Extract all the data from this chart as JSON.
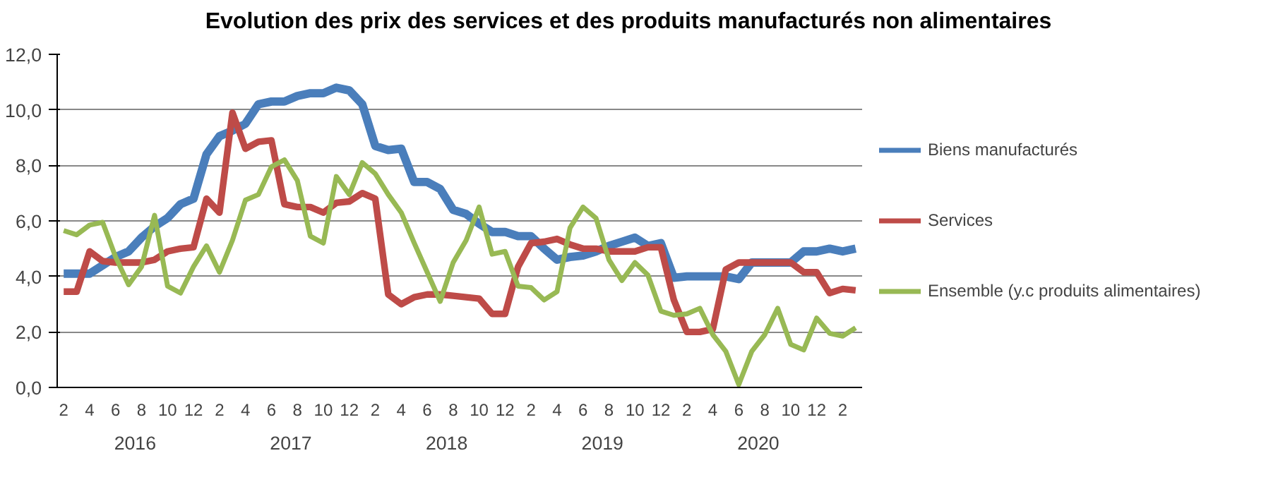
{
  "chart_data": {
    "type": "line",
    "title": "Evolution des prix des services et des produits manufacturés non alimentaires",
    "categories": [
      "2",
      null,
      "4",
      null,
      "6",
      null,
      "8",
      null,
      "10",
      null,
      "12",
      null,
      "2",
      null,
      "4",
      null,
      "6",
      null,
      "8",
      null,
      "10",
      null,
      "12",
      null,
      "2",
      null,
      "4",
      null,
      "6",
      null,
      "8",
      null,
      "10",
      null,
      "12",
      null,
      "2",
      null,
      "4",
      null,
      "6",
      null,
      "8",
      null,
      "10",
      null,
      "12",
      null,
      "2",
      null,
      "4",
      null,
      "6",
      null,
      "8",
      null,
      "10",
      null,
      "12",
      null,
      "2",
      null
    ],
    "series": [
      {
        "name": "Biens manufacturés",
        "color": "#4a7ebb",
        "values": [
          4.1,
          4.1,
          4.1,
          4.4,
          4.7,
          4.9,
          5.4,
          5.8,
          6.1,
          6.6,
          6.8,
          8.4,
          9.05,
          9.25,
          9.5,
          10.2,
          10.3,
          10.3,
          10.5,
          10.6,
          10.6,
          10.8,
          10.7,
          10.2,
          8.7,
          8.55,
          8.6,
          7.4,
          7.4,
          7.15,
          6.4,
          6.25,
          5.9,
          5.6,
          5.6,
          5.45,
          5.45,
          5.0,
          4.6,
          4.7,
          4.75,
          4.9,
          5.1,
          5.25,
          5.4,
          5.1,
          5.2,
          3.95,
          4.0,
          4.0,
          4.0,
          4.0,
          3.9,
          4.5,
          4.5,
          4.5,
          4.5,
          4.9,
          4.9,
          5.0,
          4.9,
          5.0
        ]
      },
      {
        "name": "Services",
        "color": "#be4b48",
        "values": [
          3.45,
          3.45,
          4.9,
          4.55,
          4.5,
          4.5,
          4.5,
          4.6,
          4.9,
          5.0,
          5.05,
          6.8,
          6.3,
          9.9,
          8.6,
          8.85,
          8.9,
          6.6,
          6.5,
          6.5,
          6.3,
          6.65,
          6.7,
          7.0,
          6.8,
          3.35,
          3.0,
          3.25,
          3.35,
          3.35,
          3.3,
          3.25,
          3.2,
          2.65,
          2.65,
          4.35,
          5.2,
          5.25,
          5.35,
          5.15,
          5.0,
          5.0,
          4.9,
          4.9,
          4.9,
          5.05,
          5.05,
          3.15,
          2.0,
          2.0,
          2.1,
          4.25,
          4.5,
          4.5,
          4.5,
          4.5,
          4.5,
          4.15,
          4.15,
          3.4,
          3.55,
          3.5
        ]
      },
      {
        "name": "Ensemble (y.c produits alimentaires)",
        "color": "#98b954",
        "values": [
          5.65,
          5.5,
          5.85,
          5.95,
          4.7,
          3.7,
          4.35,
          6.2,
          3.65,
          3.4,
          4.35,
          5.1,
          4.15,
          5.3,
          6.75,
          6.95,
          7.95,
          8.2,
          7.45,
          5.45,
          5.2,
          7.6,
          6.95,
          8.1,
          7.7,
          6.95,
          6.3,
          5.2,
          4.15,
          3.1,
          4.5,
          5.3,
          6.5,
          4.8,
          4.9,
          3.65,
          3.6,
          3.15,
          3.45,
          5.75,
          6.5,
          6.1,
          4.6,
          3.85,
          4.5,
          4.05,
          2.75,
          2.6,
          2.65,
          2.85,
          1.9,
          1.3,
          0.1,
          1.3,
          1.9,
          2.85,
          1.55,
          1.35,
          2.5,
          1.95,
          1.85,
          2.15
        ]
      }
    ],
    "ylim": [
      0,
      12
    ],
    "yticks": [
      {
        "value": 0,
        "label": "0,0"
      },
      {
        "value": 2,
        "label": "2,0"
      },
      {
        "value": 4,
        "label": "4,0"
      },
      {
        "value": 6,
        "label": "6,0"
      },
      {
        "value": 8,
        "label": "8,0"
      },
      {
        "value": 10,
        "label": "10,0"
      },
      {
        "value": 12,
        "label": "12,0"
      }
    ],
    "grid": "y",
    "legend": "right",
    "marker": "none",
    "line_style": "solid",
    "annotations": [
      "2016",
      "2017",
      "2018",
      "2019",
      "2020"
    ]
  }
}
